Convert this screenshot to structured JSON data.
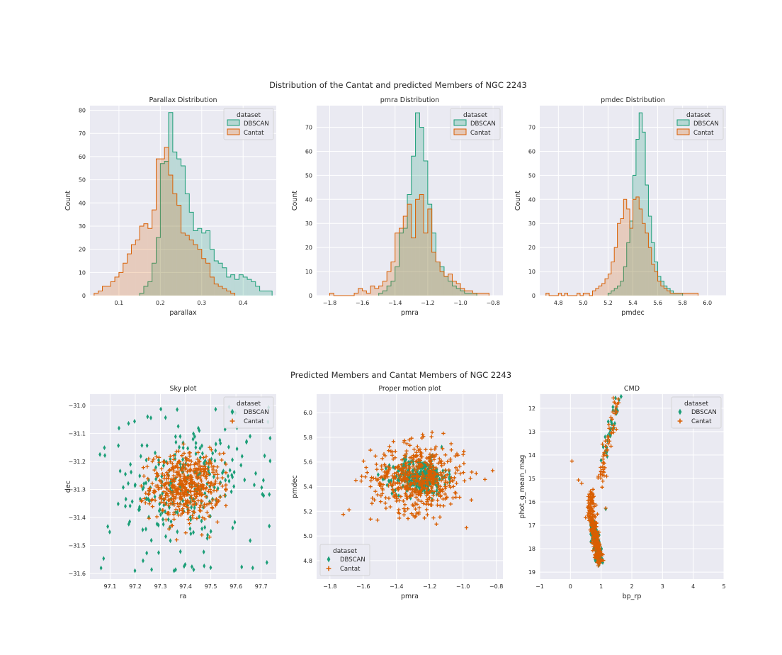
{
  "figure": {
    "row1_title": "Distribution of the Cantat and predicted Members of NGC 2243",
    "row2_title": "Predicted Members and Cantat Members of NGC 2243"
  },
  "colors": {
    "dbscan": "#1b9e77",
    "cantat": "#d95f02",
    "panel_bg": "#eaeaf2",
    "grid": "#ffffff"
  },
  "legend": {
    "title": "dataset",
    "entries": [
      "DBSCAN",
      "Cantat"
    ]
  },
  "chart_data": [
    {
      "id": "parallax",
      "type": "histogram-step",
      "title": "Parallax Distribution",
      "xlabel": "parallax",
      "ylabel": "Count",
      "xlim": [
        0.03,
        0.48
      ],
      "ylim": [
        0,
        82
      ],
      "xticks": [
        0.1,
        0.2,
        0.3,
        0.4
      ],
      "yticks": [
        0,
        10,
        20,
        30,
        40,
        50,
        60,
        70,
        80
      ],
      "xtick_labels": [
        "0.1",
        "0.2",
        "0.3",
        "0.4"
      ],
      "ytick_labels": [
        "0",
        "10",
        "20",
        "30",
        "40",
        "50",
        "60",
        "70",
        "80"
      ],
      "legend_position": "top-right",
      "series": [
        {
          "name": "DBSCAN",
          "edges": [
            0.15,
            0.16,
            0.17,
            0.18,
            0.19,
            0.2,
            0.21,
            0.22,
            0.23,
            0.24,
            0.25,
            0.26,
            0.27,
            0.28,
            0.29,
            0.3,
            0.31,
            0.32,
            0.33,
            0.34,
            0.35,
            0.36,
            0.37,
            0.38,
            0.39,
            0.4,
            0.41,
            0.42,
            0.43,
            0.44,
            0.45,
            0.46,
            0.47
          ],
          "counts": [
            1,
            4,
            6,
            14,
            25,
            57,
            58,
            79,
            62,
            59,
            56,
            44,
            36,
            28,
            29,
            27,
            28,
            20,
            15,
            14,
            12,
            8,
            9,
            7,
            9,
            8,
            7,
            6,
            4,
            2,
            2,
            2
          ]
        },
        {
          "name": "Cantat",
          "edges": [
            0.04,
            0.05,
            0.06,
            0.07,
            0.08,
            0.09,
            0.1,
            0.11,
            0.12,
            0.13,
            0.14,
            0.15,
            0.16,
            0.17,
            0.18,
            0.19,
            0.2,
            0.21,
            0.22,
            0.23,
            0.24,
            0.25,
            0.26,
            0.27,
            0.28,
            0.29,
            0.3,
            0.31,
            0.32,
            0.33,
            0.34,
            0.35,
            0.36,
            0.37,
            0.38
          ],
          "counts": [
            1,
            2,
            4,
            4,
            6,
            8,
            10,
            14,
            18,
            22,
            24,
            30,
            31,
            29,
            37,
            59,
            59,
            64,
            52,
            44,
            39,
            27,
            26,
            24,
            22,
            20,
            16,
            14,
            8,
            5,
            4,
            3,
            2,
            1
          ]
        }
      ]
    },
    {
      "id": "pmra",
      "type": "histogram-step",
      "title": "pmra Distribution",
      "xlabel": "pmra",
      "ylabel": "Count",
      "xlim": [
        -1.88,
        -0.74
      ],
      "ylim": [
        0,
        79
      ],
      "xticks": [
        -1.8,
        -1.6,
        -1.4,
        -1.2,
        -1.0,
        -0.8
      ],
      "yticks": [
        0,
        10,
        20,
        30,
        40,
        50,
        60,
        70
      ],
      "xtick_labels": [
        "−1.8",
        "−1.6",
        "−1.4",
        "−1.2",
        "−1.0",
        "−0.8"
      ],
      "ytick_labels": [
        "0",
        "10",
        "20",
        "30",
        "40",
        "50",
        "60",
        "70"
      ],
      "legend_position": "top-right",
      "series": [
        {
          "name": "DBSCAN",
          "edges": [
            -1.5,
            -1.475,
            -1.45,
            -1.425,
            -1.4,
            -1.375,
            -1.35,
            -1.325,
            -1.3,
            -1.275,
            -1.25,
            -1.225,
            -1.2,
            -1.175,
            -1.15,
            -1.125,
            -1.1,
            -1.075,
            -1.05,
            -1.025,
            -1.0,
            -0.975,
            -0.95,
            -0.925,
            -0.9
          ],
          "counts": [
            1,
            2,
            4,
            6,
            12,
            26,
            28,
            42,
            58,
            76,
            70,
            56,
            38,
            26,
            14,
            12,
            8,
            6,
            4,
            3,
            2,
            1,
            1,
            1
          ]
        },
        {
          "name": "Cantat",
          "edges": [
            -1.8,
            -1.775,
            -1.75,
            -1.725,
            -1.7,
            -1.675,
            -1.65,
            -1.625,
            -1.6,
            -1.575,
            -1.55,
            -1.525,
            -1.5,
            -1.475,
            -1.45,
            -1.425,
            -1.4,
            -1.375,
            -1.35,
            -1.325,
            -1.3,
            -1.275,
            -1.25,
            -1.225,
            -1.2,
            -1.175,
            -1.15,
            -1.125,
            -1.1,
            -1.075,
            -1.05,
            -1.025,
            -1.0,
            -0.975,
            -0.95,
            -0.925,
            -0.9,
            -0.875,
            -0.85,
            -0.825
          ],
          "counts": [
            1,
            0,
            0,
            0,
            0,
            0,
            1,
            3,
            2,
            1,
            4,
            3,
            4,
            6,
            10,
            14,
            26,
            28,
            33,
            38,
            24,
            40,
            42,
            26,
            36,
            18,
            14,
            10,
            8,
            9,
            6,
            5,
            3,
            2,
            2,
            1,
            1,
            1,
            1
          ]
        }
      ]
    },
    {
      "id": "pmdec",
      "type": "histogram-step",
      "title": "pmdec Distribution",
      "xlabel": "pmdec",
      "ylabel": "Count",
      "xlim": [
        4.65,
        6.15
      ],
      "ylim": [
        0,
        79
      ],
      "xticks": [
        4.8,
        5.0,
        5.2,
        5.4,
        5.6,
        5.8,
        6.0
      ],
      "yticks": [
        0,
        10,
        20,
        30,
        40,
        50,
        60,
        70
      ],
      "xtick_labels": [
        "4.8",
        "5.0",
        "5.2",
        "5.4",
        "5.6",
        "5.8",
        "6.0"
      ],
      "ytick_labels": [
        "0",
        "10",
        "20",
        "30",
        "40",
        "50",
        "60",
        "70"
      ],
      "legend_position": "top-right",
      "series": [
        {
          "name": "DBSCAN",
          "edges": [
            5.2,
            5.225,
            5.25,
            5.275,
            5.3,
            5.325,
            5.35,
            5.375,
            5.4,
            5.425,
            5.45,
            5.475,
            5.5,
            5.525,
            5.55,
            5.575,
            5.6,
            5.625,
            5.65,
            5.675,
            5.7,
            5.725,
            5.75,
            5.775,
            5.8
          ],
          "counts": [
            1,
            2,
            3,
            4,
            6,
            12,
            22,
            31,
            50,
            65,
            76,
            68,
            46,
            33,
            22,
            14,
            8,
            6,
            4,
            3,
            2,
            1,
            1,
            1
          ]
        },
        {
          "name": "Cantat",
          "edges": [
            4.7,
            4.725,
            4.75,
            4.775,
            4.8,
            4.825,
            4.85,
            4.875,
            4.9,
            4.925,
            4.95,
            4.975,
            5.0,
            5.025,
            5.05,
            5.075,
            5.1,
            5.125,
            5.15,
            5.175,
            5.2,
            5.225,
            5.25,
            5.275,
            5.3,
            5.325,
            5.35,
            5.375,
            5.4,
            5.425,
            5.45,
            5.475,
            5.5,
            5.525,
            5.55,
            5.575,
            5.6,
            5.625,
            5.65,
            5.675,
            5.7,
            5.725,
            5.75,
            5.775,
            5.8,
            5.825,
            5.85,
            5.875,
            5.9,
            5.925
          ],
          "counts": [
            1,
            0,
            0,
            0,
            1,
            0,
            1,
            0,
            0,
            0,
            1,
            0,
            1,
            1,
            0,
            2,
            3,
            4,
            5,
            7,
            9,
            14,
            20,
            30,
            32,
            40,
            36,
            28,
            40,
            41,
            36,
            30,
            26,
            20,
            13,
            10,
            6,
            4,
            3,
            2,
            1,
            1,
            1,
            1,
            1,
            1,
            1,
            1,
            1
          ]
        }
      ]
    },
    {
      "id": "sky",
      "type": "scatter",
      "title": "Sky plot",
      "xlabel": "ra",
      "ylabel": "dec",
      "xlim": [
        97.02,
        97.76
      ],
      "ylim": [
        -31.62,
        -30.96
      ],
      "xticks": [
        97.1,
        97.2,
        97.3,
        97.4,
        97.5,
        97.6,
        97.7
      ],
      "yticks": [
        -31.6,
        -31.5,
        -31.4,
        -31.3,
        -31.2,
        -31.1,
        -31.0
      ],
      "xtick_labels": [
        "97.1",
        "97.2",
        "97.3",
        "97.4",
        "97.5",
        "97.6",
        "97.7"
      ],
      "ytick_labels": [
        "−31.6",
        "−31.5",
        "−31.4",
        "−31.3",
        "−31.2",
        "−31.1",
        "−31.0"
      ],
      "legend_position": "top-right",
      "series": [
        {
          "name": "DBSCAN",
          "center": [
            97.4,
            -31.29
          ],
          "spread": [
            0.13,
            0.11
          ],
          "n": 280,
          "range": [
            [
              97.05,
              97.74
            ],
            [
              -31.59,
              -31.0
            ]
          ]
        },
        {
          "name": "Cantat",
          "center": [
            97.4,
            -31.29
          ],
          "spread": [
            0.07,
            0.06
          ],
          "n": 480,
          "range": [
            [
              97.2,
              97.56
            ],
            [
              -31.48,
              -31.1
            ]
          ]
        }
      ]
    },
    {
      "id": "pm",
      "type": "scatter",
      "title": "Proper motion plot",
      "xlabel": "pmra",
      "ylabel": "pmdec",
      "xlim": [
        -1.88,
        -0.76
      ],
      "ylim": [
        4.65,
        6.15
      ],
      "xticks": [
        -1.8,
        -1.6,
        -1.4,
        -1.2,
        -1.0,
        -0.8
      ],
      "yticks": [
        4.8,
        5.0,
        5.2,
        5.4,
        5.6,
        5.8,
        6.0
      ],
      "xtick_labels": [
        "−1.8",
        "−1.6",
        "−1.4",
        "−1.2",
        "−1.0",
        "−0.8"
      ],
      "ytick_labels": [
        "4.8",
        "5.0",
        "5.2",
        "5.4",
        "5.6",
        "5.8",
        "6.0"
      ],
      "legend_position": "bottom-left",
      "series": [
        {
          "name": "DBSCAN",
          "center": [
            -1.26,
            5.48
          ],
          "spread": [
            0.08,
            0.07
          ],
          "n": 320,
          "range": [
            [
              -1.55,
              -0.85
            ],
            [
              5.1,
              5.85
            ]
          ]
        },
        {
          "name": "Cantat",
          "center": [
            -1.27,
            5.47
          ],
          "spread": [
            0.14,
            0.14
          ],
          "n": 520,
          "range": [
            [
              -1.85,
              -0.8
            ],
            [
              4.72,
              6.1
            ]
          ]
        }
      ]
    },
    {
      "id": "cmd",
      "type": "scatter",
      "title": "CMD",
      "xlabel": "bp_rp",
      "ylabel": "phot_g_mean_mag",
      "xlim": [
        -1,
        5
      ],
      "ylim": [
        19.3,
        11.4
      ],
      "xticks": [
        -1,
        0,
        1,
        2,
        3,
        4,
        5
      ],
      "yticks": [
        12,
        13,
        14,
        15,
        16,
        17,
        18,
        19
      ],
      "xtick_labels": [
        "−1",
        "0",
        "1",
        "2",
        "3",
        "4",
        "5"
      ],
      "ytick_labels": [
        "12",
        "13",
        "14",
        "15",
        "16",
        "17",
        "18",
        "19"
      ],
      "legend_position": "top-right",
      "sequence": {
        "main_sequence": [
          [
            0.7,
            15.6
          ],
          [
            0.65,
            16.2
          ],
          [
            0.7,
            16.8
          ],
          [
            0.78,
            17.3
          ],
          [
            0.85,
            17.8
          ],
          [
            0.9,
            18.2
          ],
          [
            0.95,
            18.6
          ]
        ],
        "giant_branch": [
          [
            0.95,
            15.5
          ],
          [
            1.05,
            14.8
          ],
          [
            1.1,
            14.2
          ],
          [
            1.15,
            13.6
          ],
          [
            1.3,
            13.0
          ],
          [
            1.4,
            12.5
          ],
          [
            1.58,
            11.5
          ]
        ],
        "blue_stragglers": [
          [
            0.1,
            14.2
          ],
          [
            0.25,
            15.1
          ],
          [
            0.35,
            15.2
          ],
          [
            1.15,
            16.3
          ]
        ]
      },
      "series": [
        {
          "name": "DBSCAN",
          "n": 230
        },
        {
          "name": "Cantat",
          "n": 300
        }
      ]
    }
  ]
}
